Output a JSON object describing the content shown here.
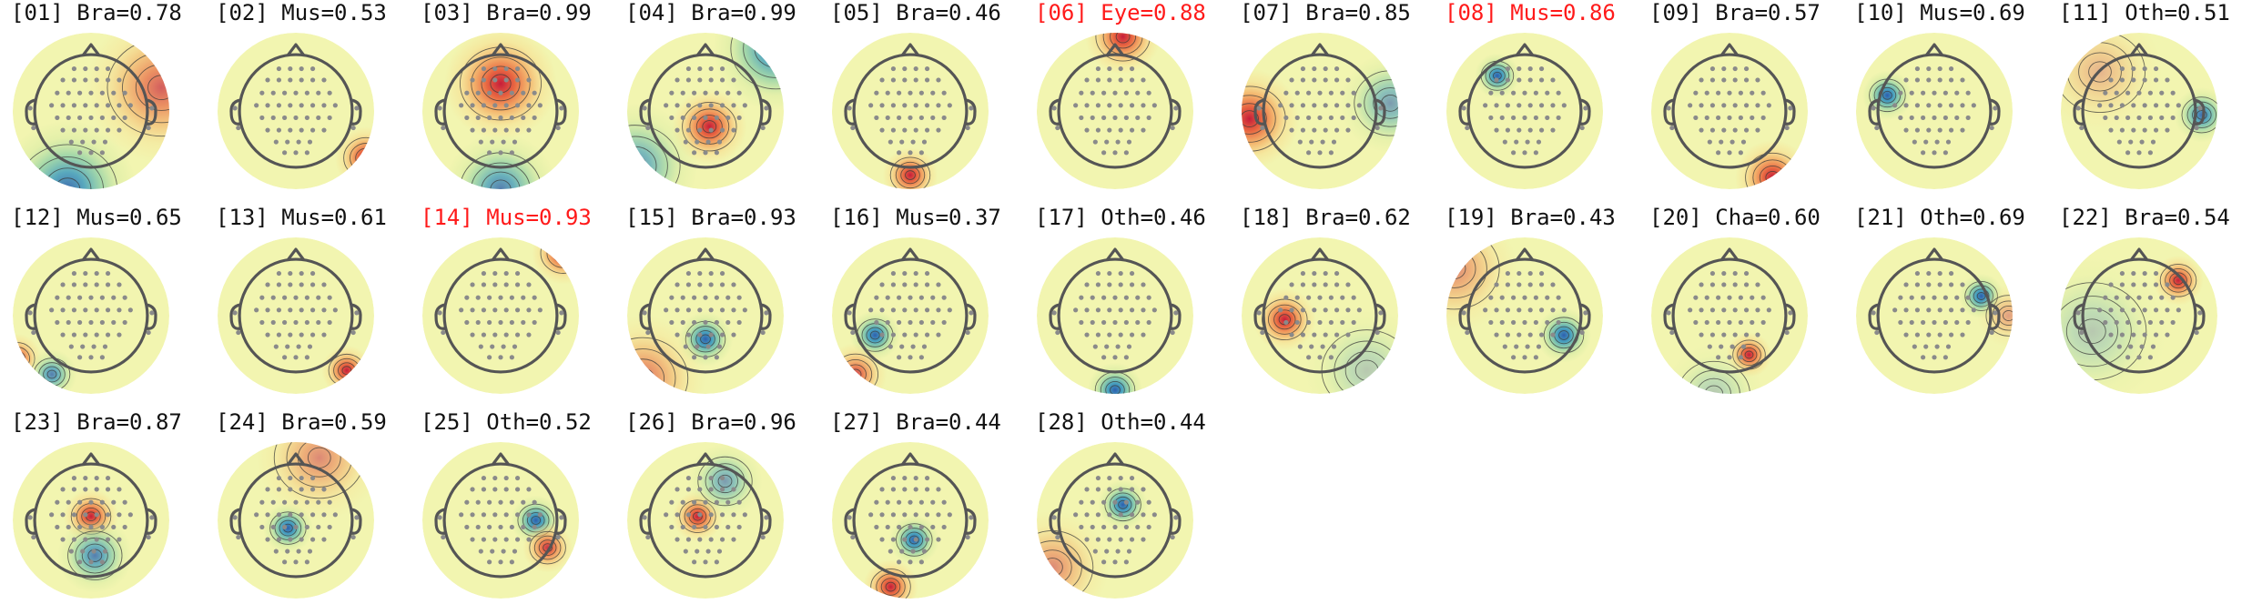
{
  "colors": {
    "text": "#111111",
    "flagged_text": "#ff1a1a",
    "head_outline": "#555555",
    "electrode": "#8a8a8a",
    "contour": "#3a3a3a",
    "neutral": "#f2f5b0",
    "warm": [
      "#f9d98a",
      "#f4a259",
      "#e8603c",
      "#c61d3a"
    ],
    "cool": [
      "#cfe9a0",
      "#7fcaa6",
      "#3f9cc0",
      "#2e5fae"
    ]
  },
  "colormap": "Spectral_r",
  "components": [
    {
      "index": "01",
      "label": "[01] Bra=0.78",
      "class": "Bra",
      "prob": 0.78,
      "flagged": false,
      "sources": [
        {
          "u": 0.9,
          "v": -0.3,
          "amp": 0.7,
          "s": 0.6
        },
        {
          "u": -0.3,
          "v": 1.0,
          "amp": -0.9,
          "s": 0.55
        }
      ]
    },
    {
      "index": "02",
      "label": "[02] Mus=0.53",
      "class": "Mus",
      "prob": 0.53,
      "flagged": false,
      "sources": [
        {
          "u": 0.9,
          "v": 0.6,
          "amp": 1.0,
          "s": 0.25
        }
      ]
    },
    {
      "index": "03",
      "label": "[03] Bra=0.99",
      "class": "Bra",
      "prob": 0.99,
      "flagged": false,
      "sources": [
        {
          "u": 0.0,
          "v": -0.35,
          "amp": 1.0,
          "s": 0.45
        },
        {
          "u": 0.0,
          "v": 1.0,
          "amp": -0.8,
          "s": 0.45
        }
      ]
    },
    {
      "index": "04",
      "label": "[04] Bra=0.99",
      "class": "Bra",
      "prob": 0.99,
      "flagged": false,
      "sources": [
        {
          "u": 0.05,
          "v": 0.2,
          "amp": 1.0,
          "s": 0.3
        },
        {
          "u": 0.9,
          "v": -0.8,
          "amp": -0.9,
          "s": 0.5
        },
        {
          "u": -0.9,
          "v": 0.7,
          "amp": -0.7,
          "s": 0.5
        }
      ]
    },
    {
      "index": "05",
      "label": "[05] Bra=0.46",
      "class": "Bra",
      "prob": 0.46,
      "flagged": false,
      "sources": [
        {
          "u": 0.0,
          "v": 0.82,
          "amp": 1.0,
          "s": 0.22
        }
      ]
    },
    {
      "index": "06",
      "label": "[06] Eye=0.88",
      "class": "Eye",
      "prob": 0.88,
      "flagged": true,
      "sources": [
        {
          "u": 0.1,
          "v": -0.95,
          "amp": 1.0,
          "s": 0.3
        }
      ]
    },
    {
      "index": "07",
      "label": "[07] Bra=0.85",
      "class": "Bra",
      "prob": 0.85,
      "flagged": false,
      "sources": [
        {
          "u": -0.9,
          "v": 0.1,
          "amp": 1.0,
          "s": 0.4
        },
        {
          "u": 0.9,
          "v": -0.1,
          "amp": -0.6,
          "s": 0.4
        }
      ]
    },
    {
      "index": "08",
      "label": "[08] Mus=0.86",
      "class": "Mus",
      "prob": 0.86,
      "flagged": true,
      "sources": [
        {
          "u": -0.35,
          "v": -0.45,
          "amp": -1.0,
          "s": 0.18
        }
      ]
    },
    {
      "index": "09",
      "label": "[09] Bra=0.57",
      "class": "Bra",
      "prob": 0.57,
      "flagged": false,
      "sources": [
        {
          "u": 0.55,
          "v": 0.85,
          "amp": 1.0,
          "s": 0.3
        }
      ]
    },
    {
      "index": "10",
      "label": "[10] Mus=0.69",
      "class": "Mus",
      "prob": 0.69,
      "flagged": false,
      "sources": [
        {
          "u": -0.6,
          "v": -0.2,
          "amp": -1.0,
          "s": 0.2
        }
      ]
    },
    {
      "index": "11",
      "label": "[11] Oth=0.51",
      "class": "Oth",
      "prob": 0.51,
      "flagged": false,
      "sources": [
        {
          "u": 0.8,
          "v": 0.05,
          "amp": -0.9,
          "s": 0.22
        },
        {
          "u": -0.5,
          "v": -0.5,
          "amp": 0.3,
          "s": 0.5
        }
      ]
    },
    {
      "index": "12",
      "label": "[12] Mus=0.65",
      "class": "Mus",
      "prob": 0.65,
      "flagged": false,
      "sources": [
        {
          "u": -0.95,
          "v": 0.55,
          "amp": 0.9,
          "s": 0.2
        },
        {
          "u": -0.5,
          "v": 0.75,
          "amp": -0.8,
          "s": 0.2
        }
      ]
    },
    {
      "index": "13",
      "label": "[13] Mus=0.61",
      "class": "Mus",
      "prob": 0.61,
      "flagged": false,
      "sources": [
        {
          "u": 0.65,
          "v": 0.7,
          "amp": 1.0,
          "s": 0.2
        }
      ]
    },
    {
      "index": "14",
      "label": "[14] Mus=0.93",
      "class": "Mus",
      "prob": 0.93,
      "flagged": true,
      "sources": [
        {
          "u": 0.8,
          "v": -0.8,
          "amp": 1.0,
          "s": 0.25
        }
      ]
    },
    {
      "index": "15",
      "label": "[15] Bra=0.93",
      "class": "Bra",
      "prob": 0.93,
      "flagged": false,
      "sources": [
        {
          "u": 0.0,
          "v": 0.3,
          "amp": -1.0,
          "s": 0.22
        },
        {
          "u": -0.8,
          "v": 0.8,
          "amp": 0.6,
          "s": 0.5
        }
      ]
    },
    {
      "index": "16",
      "label": "[16] Mus=0.37",
      "class": "Mus",
      "prob": 0.37,
      "flagged": false,
      "sources": [
        {
          "u": -0.45,
          "v": 0.25,
          "amp": -1.0,
          "s": 0.2
        },
        {
          "u": -0.7,
          "v": 0.75,
          "amp": 0.8,
          "s": 0.25
        }
      ]
    },
    {
      "index": "17",
      "label": "[17] Oth=0.46",
      "class": "Oth",
      "prob": 0.46,
      "flagged": false,
      "sources": [
        {
          "u": 0.0,
          "v": 0.95,
          "amp": -1.0,
          "s": 0.22
        }
      ]
    },
    {
      "index": "18",
      "label": "[18] Bra=0.62",
      "class": "Bra",
      "prob": 0.62,
      "flagged": false,
      "sources": [
        {
          "u": -0.45,
          "v": 0.05,
          "amp": 1.0,
          "s": 0.25
        },
        {
          "u": 0.6,
          "v": 0.7,
          "amp": -0.3,
          "s": 0.5
        }
      ]
    },
    {
      "index": "19",
      "label": "[19] Bra=0.43",
      "class": "Bra",
      "prob": 0.43,
      "flagged": false,
      "sources": [
        {
          "u": 0.5,
          "v": 0.25,
          "amp": -1.0,
          "s": 0.22
        },
        {
          "u": -0.9,
          "v": -0.6,
          "amp": 0.5,
          "s": 0.5
        }
      ]
    },
    {
      "index": "20",
      "label": "[20] Cha=0.60",
      "class": "Cha",
      "prob": 0.6,
      "flagged": false,
      "sources": [
        {
          "u": 0.25,
          "v": 0.5,
          "amp": 1.0,
          "s": 0.18
        },
        {
          "u": -0.2,
          "v": 1.0,
          "amp": -0.3,
          "s": 0.4
        }
      ]
    },
    {
      "index": "21",
      "label": "[21] Oth=0.69",
      "class": "Oth",
      "prob": 0.69,
      "flagged": false,
      "sources": [
        {
          "u": 0.6,
          "v": -0.25,
          "amp": -1.0,
          "s": 0.18
        },
        {
          "u": 0.95,
          "v": 0.0,
          "amp": 0.4,
          "s": 0.25
        }
      ]
    },
    {
      "index": "22",
      "label": "[22] Bra=0.54",
      "class": "Bra",
      "prob": 0.54,
      "flagged": false,
      "sources": [
        {
          "u": 0.5,
          "v": -0.45,
          "amp": 1.0,
          "s": 0.2
        },
        {
          "u": -0.6,
          "v": 0.2,
          "amp": -0.3,
          "s": 0.6
        }
      ]
    },
    {
      "index": "23",
      "label": "[23] Bra=0.87",
      "class": "Bra",
      "prob": 0.87,
      "flagged": false,
      "sources": [
        {
          "u": 0.0,
          "v": -0.05,
          "amp": 1.0,
          "s": 0.22
        },
        {
          "u": 0.05,
          "v": 0.45,
          "amp": -0.8,
          "s": 0.3
        }
      ]
    },
    {
      "index": "24",
      "label": "[24] Bra=0.59",
      "class": "Bra",
      "prob": 0.59,
      "flagged": false,
      "sources": [
        {
          "u": -0.1,
          "v": 0.1,
          "amp": -1.0,
          "s": 0.2
        },
        {
          "u": 0.3,
          "v": -0.8,
          "amp": 0.5,
          "s": 0.5
        }
      ]
    },
    {
      "index": "25",
      "label": "[25] Oth=0.52",
      "class": "Oth",
      "prob": 0.52,
      "flagged": false,
      "sources": [
        {
          "u": 0.45,
          "v": 0.0,
          "amp": -1.0,
          "s": 0.2
        },
        {
          "u": 0.6,
          "v": 0.35,
          "amp": 0.9,
          "s": 0.2
        }
      ]
    },
    {
      "index": "26",
      "label": "[26] Bra=0.96",
      "class": "Bra",
      "prob": 0.96,
      "flagged": false,
      "sources": [
        {
          "u": -0.1,
          "v": -0.05,
          "amp": 1.0,
          "s": 0.2
        },
        {
          "u": 0.25,
          "v": -0.5,
          "amp": -0.6,
          "s": 0.3
        }
      ]
    },
    {
      "index": "27",
      "label": "[27] Bra=0.44",
      "class": "Bra",
      "prob": 0.44,
      "flagged": false,
      "sources": [
        {
          "u": 0.05,
          "v": 0.25,
          "amp": -1.0,
          "s": 0.2
        },
        {
          "u": -0.25,
          "v": 0.85,
          "amp": 1.0,
          "s": 0.22
        }
      ]
    },
    {
      "index": "28",
      "label": "[28] Oth=0.44",
      "class": "Oth",
      "prob": 0.44,
      "flagged": false,
      "sources": [
        {
          "u": 0.1,
          "v": -0.2,
          "amp": -1.0,
          "s": 0.2
        },
        {
          "u": -0.8,
          "v": 0.6,
          "amp": 0.5,
          "s": 0.45
        }
      ]
    }
  ]
}
